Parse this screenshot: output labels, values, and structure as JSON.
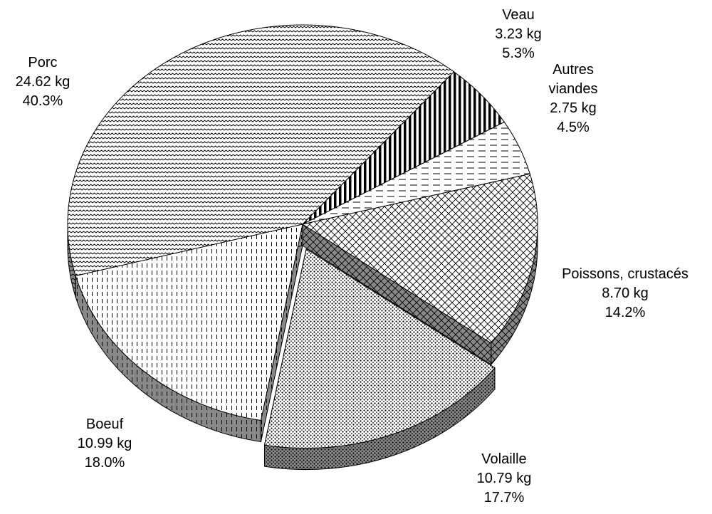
{
  "chart_data": {
    "type": "pie",
    "categories": [
      "Porc",
      "Veau",
      "Autres viandes",
      "Poissons, crustacés",
      "Volaille",
      "Boeuf"
    ],
    "values": [
      24.62,
      3.23,
      2.75,
      8.7,
      10.79,
      10.99
    ],
    "value_labels": [
      "24.62 kg",
      "3.23 kg",
      "2.75 kg",
      "8.70 kg",
      "10.79 kg",
      "10.99 kg"
    ],
    "percentages": [
      40.3,
      5.3,
      4.5,
      14.2,
      17.7,
      18.0
    ],
    "percentage_labels": [
      "40.3%",
      "5.3%",
      "4.5%",
      "14.2%",
      "17.7%",
      "18.0%"
    ],
    "startangle": 165,
    "explode": [
      0,
      0,
      0,
      0,
      0.14,
      0
    ]
  }
}
